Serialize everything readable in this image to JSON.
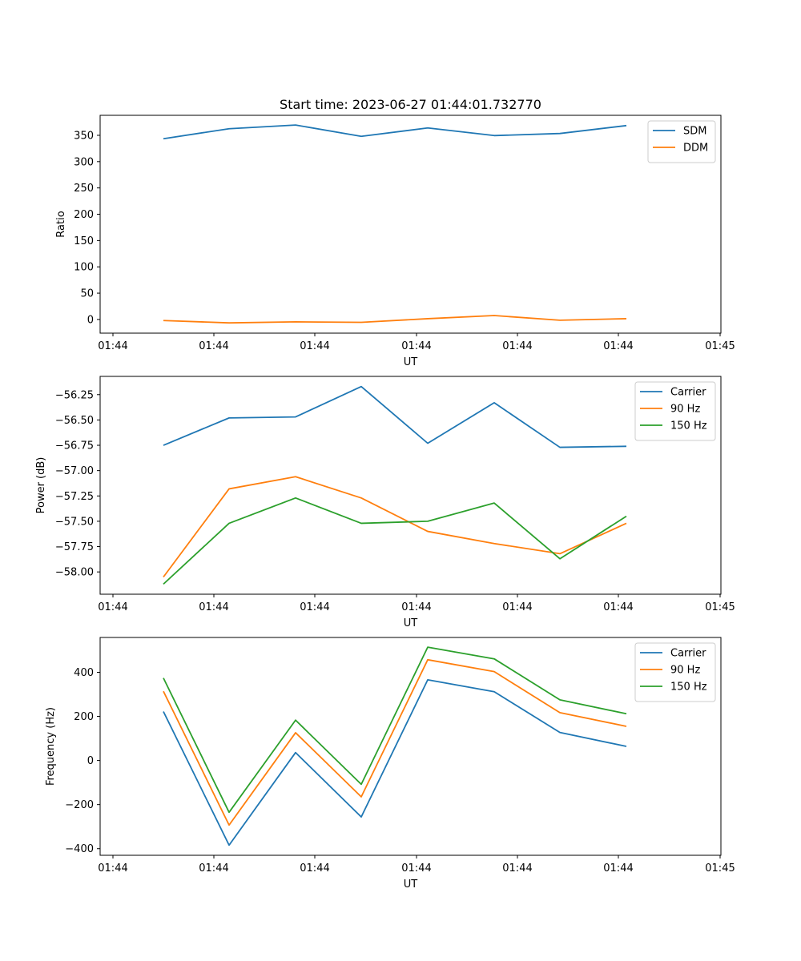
{
  "chart_data": [
    {
      "type": "line",
      "title": "Start time: 2023-06-27 01:44:01.732770",
      "xlabel": "UT",
      "ylabel": "Ratio",
      "x_tick_labels": [
        "01:44",
        "01:44",
        "01:44",
        "01:44",
        "01:44",
        "01:44",
        "01:45"
      ],
      "y_ticks": [
        0,
        50,
        100,
        150,
        200,
        250,
        300,
        350
      ],
      "ylim": [
        -26,
        388
      ],
      "legend_position": "upper right",
      "series": [
        {
          "name": "SDM",
          "color": "#1f77b4",
          "values": [
            343.5,
            362.5,
            369.5,
            348,
            364,
            349.5,
            353.5,
            368.5
          ]
        },
        {
          "name": "DDM",
          "color": "#ff7f0e",
          "values": [
            -2,
            -6.5,
            -4.5,
            -5.5,
            1.5,
            7.5,
            -1.5,
            1.5
          ]
        }
      ]
    },
    {
      "type": "line",
      "title": "",
      "xlabel": "UT",
      "ylabel": "Power (dB)",
      "x_tick_labels": [
        "01:44",
        "01:44",
        "01:44",
        "01:44",
        "01:44",
        "01:44",
        "01:45"
      ],
      "y_ticks": [
        -58.0,
        -57.75,
        -57.5,
        -57.25,
        -57.0,
        -56.75,
        -56.5,
        -56.25
      ],
      "y_tick_labels": [
        "−58.00",
        "−57.75",
        "−57.50",
        "−57.25",
        "−57.00",
        "−56.75",
        "−56.50",
        "−56.25"
      ],
      "ylim": [
        -58.22,
        -56.07
      ],
      "legend_position": "upper right",
      "series": [
        {
          "name": "Carrier",
          "color": "#1f77b4",
          "values": [
            -56.75,
            -56.48,
            -56.47,
            -56.17,
            -56.73,
            -56.33,
            -56.77,
            -56.76
          ]
        },
        {
          "name": "90 Hz",
          "color": "#ff7f0e",
          "values": [
            -58.05,
            -57.18,
            -57.06,
            -57.27,
            -57.6,
            -57.72,
            -57.82,
            -57.52
          ]
        },
        {
          "name": "150 Hz",
          "color": "#2ca02c",
          "values": [
            -58.12,
            -57.52,
            -57.27,
            -57.52,
            -57.5,
            -57.32,
            -57.87,
            -57.45
          ]
        }
      ]
    },
    {
      "type": "line",
      "title": "",
      "xlabel": "UT",
      "ylabel": "Frequency (Hz)",
      "x_tick_labels": [
        "01:44",
        "01:44",
        "01:44",
        "01:44",
        "01:44",
        "01:44",
        "01:45"
      ],
      "y_ticks": [
        -400,
        -200,
        0,
        200,
        400
      ],
      "y_tick_labels": [
        "−400",
        "−200",
        "0",
        "200",
        "400"
      ],
      "ylim": [
        -430,
        558
      ],
      "legend_position": "upper right",
      "series": [
        {
          "name": "Carrier",
          "color": "#1f77b4",
          "values": [
            222,
            -384,
            36,
            -256,
            366,
            312,
            127,
            64
          ]
        },
        {
          "name": "90 Hz",
          "color": "#ff7f0e",
          "values": [
            314,
            -293,
            126,
            -165,
            457,
            403,
            217,
            155
          ]
        },
        {
          "name": "150 Hz",
          "color": "#2ca02c",
          "values": [
            374,
            -235,
            183,
            -108,
            514,
            461,
            275,
            212
          ]
        }
      ]
    }
  ]
}
